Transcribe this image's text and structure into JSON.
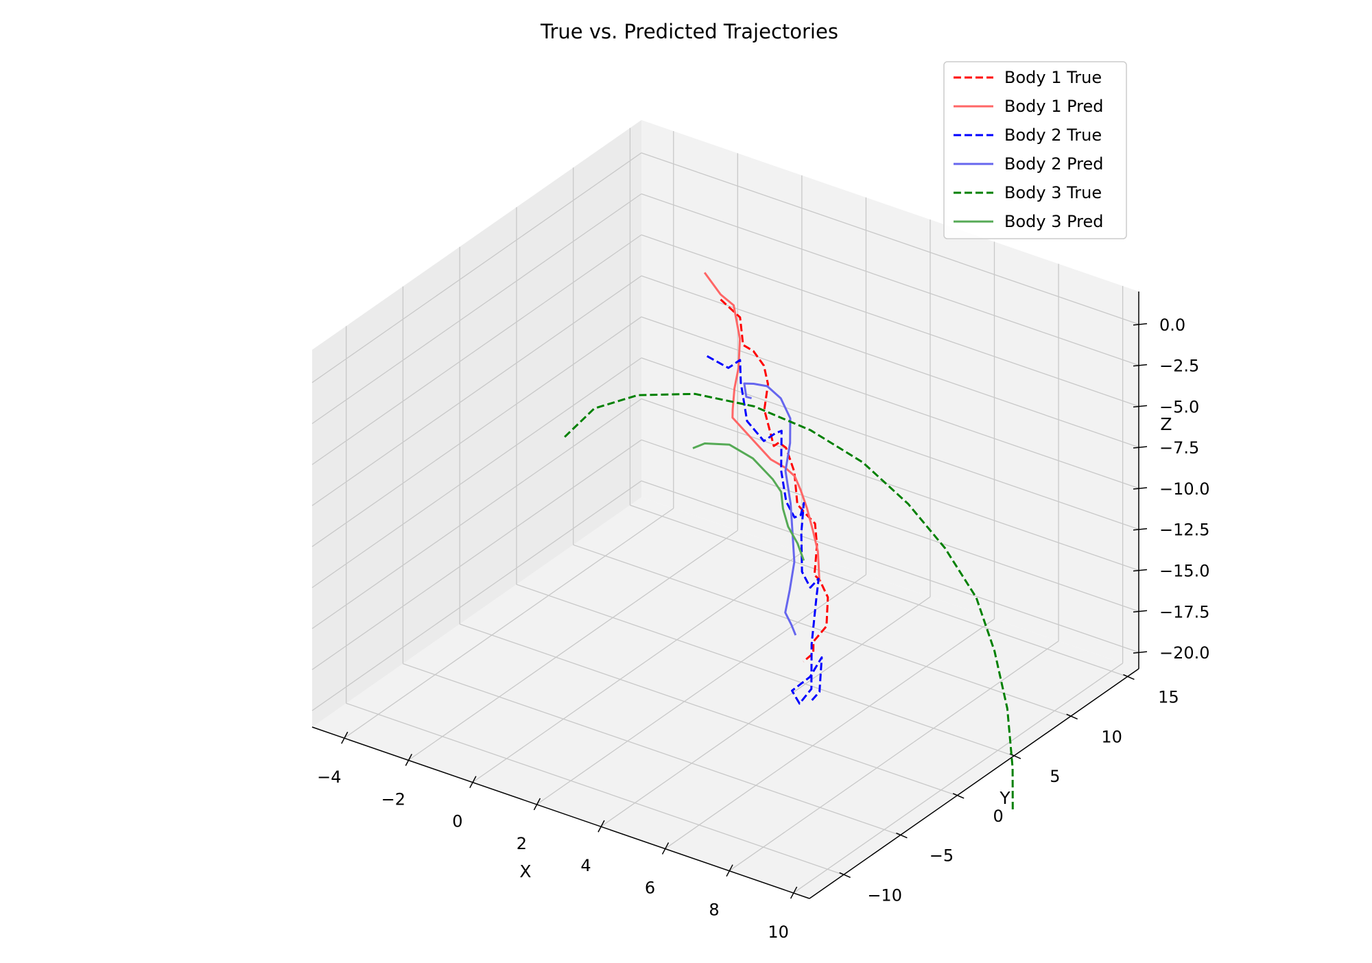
{
  "chart_data": {
    "type": "line3d",
    "title": "True vs. Predicted Trajectories",
    "xlabel": "X",
    "ylabel": "Y",
    "zlabel": "Z",
    "xlim": [
      -5,
      10.5
    ],
    "ylim": [
      -13,
      16
    ],
    "zlim": [
      -21,
      2
    ],
    "xticks": [
      -4,
      -2,
      0,
      2,
      4,
      6,
      8,
      10
    ],
    "yticks": [
      -10,
      -5,
      0,
      5,
      10,
      15
    ],
    "zticks": [
      0.0,
      -2.5,
      -5.0,
      -7.5,
      -10.0,
      -12.5,
      -15.0,
      -17.5,
      -20.0
    ],
    "xtick_labels": [
      "−4",
      "−2",
      "0",
      "2",
      "4",
      "6",
      "8",
      "10"
    ],
    "ytick_labels": [
      "−10",
      "−5",
      "0",
      "5",
      "10",
      "15"
    ],
    "ztick_labels": [
      "0.0",
      "−2.5",
      "−5.0",
      "−7.5",
      "−10.0",
      "−12.5",
      "−15.0",
      "−17.5",
      "−20.0"
    ],
    "grid": true,
    "legend_position": "top-right",
    "colors": {
      "body1": "#ff0000",
      "body2": "#0000ff",
      "body3": "#008000"
    },
    "series": [
      {
        "name": "Body 1 True",
        "color": "#ff0000",
        "style": "dashed",
        "points": [
          [
            0.3,
            8.0,
            -1.5
          ],
          [
            0.8,
            8.3,
            -2.4
          ],
          [
            1.0,
            8.0,
            -3.8
          ],
          [
            1.5,
            7.5,
            -3.6
          ],
          [
            2.0,
            7.0,
            -3.9
          ],
          [
            2.2,
            6.8,
            -4.8
          ],
          [
            2.3,
            6.2,
            -6.0
          ],
          [
            2.7,
            5.9,
            -7.8
          ],
          [
            3.0,
            5.5,
            -7.2
          ],
          [
            3.4,
            5.0,
            -7.0
          ],
          [
            3.8,
            4.6,
            -8.0
          ],
          [
            4.0,
            4.3,
            -9.7
          ],
          [
            4.3,
            4.0,
            -9.8
          ],
          [
            4.8,
            3.6,
            -10.0
          ],
          [
            5.0,
            3.2,
            -11.0
          ],
          [
            5.1,
            2.7,
            -12.5
          ],
          [
            5.4,
            2.3,
            -12.4
          ],
          [
            5.8,
            1.9,
            -13.0
          ],
          [
            5.9,
            1.5,
            -14.5
          ],
          [
            5.6,
            1.2,
            -15.5
          ],
          [
            5.7,
            0.9,
            -16.0
          ],
          [
            5.5,
            0.6,
            -16.5
          ]
        ]
      },
      {
        "name": "Body 1 Pred",
        "color": "#ff6666",
        "style": "solid",
        "points": [
          [
            -0.2,
            8.0,
            -0.2
          ],
          [
            0.3,
            8.0,
            -1.2
          ],
          [
            0.6,
            8.3,
            -1.8
          ],
          [
            0.9,
            8.0,
            -3.5
          ],
          [
            1.0,
            7.6,
            -5.0
          ],
          [
            0.8,
            7.8,
            -6.5
          ],
          [
            0.5,
            8.5,
            -8.3
          ],
          [
            0.6,
            8.2,
            -8.6
          ],
          [
            1.5,
            7.3,
            -8.8
          ],
          [
            2.5,
            6.2,
            -8.9
          ],
          [
            3.2,
            5.5,
            -8.6
          ],
          [
            3.6,
            5.2,
            -8.7
          ],
          [
            4.0,
            4.6,
            -9.0
          ],
          [
            4.4,
            4.0,
            -9.5
          ],
          [
            4.8,
            3.4,
            -10.3
          ],
          [
            5.1,
            3.0,
            -11.2
          ],
          [
            5.3,
            2.5,
            -11.6
          ],
          [
            5.5,
            2.0,
            -12.3
          ]
        ]
      },
      {
        "name": "Body 2 True",
        "color": "#0000ff",
        "style": "dashed",
        "points": [
          [
            -0.3,
            8.5,
            -5.6
          ],
          [
            0.4,
            8.4,
            -5.8
          ],
          [
            0.8,
            8.3,
            -5.0
          ],
          [
            1.0,
            7.8,
            -6.0
          ],
          [
            1.3,
            7.5,
            -8.0
          ],
          [
            2.0,
            7.0,
            -8.5
          ],
          [
            2.5,
            6.6,
            -7.5
          ],
          [
            2.8,
            6.3,
            -7.0
          ],
          [
            3.0,
            5.7,
            -9.0
          ],
          [
            3.3,
            5.3,
            -10.5
          ],
          [
            3.7,
            4.9,
            -11.0
          ],
          [
            4.0,
            4.6,
            -10.5
          ],
          [
            4.2,
            4.3,
            -9.5
          ],
          [
            4.3,
            3.8,
            -11.0
          ],
          [
            4.5,
            3.3,
            -13.0
          ],
          [
            4.9,
            2.9,
            -13.5
          ],
          [
            5.3,
            2.5,
            -12.5
          ],
          [
            5.4,
            2.0,
            -13.5
          ],
          [
            5.4,
            1.6,
            -16.0
          ],
          [
            5.5,
            1.3,
            -18.5
          ],
          [
            5.2,
            1.1,
            -19.5
          ],
          [
            5.0,
            1.0,
            -18.8
          ],
          [
            5.6,
            0.9,
            -17.5
          ],
          [
            6.0,
            0.8,
            -16.0
          ],
          [
            6.0,
            0.6,
            -18.0
          ],
          [
            5.8,
            0.5,
            -18.6
          ]
        ]
      },
      {
        "name": "Body 2 Pred",
        "color": "#6666ee",
        "style": "solid",
        "points": [
          [
            1.3,
            7.9,
            -6.8
          ],
          [
            1.1,
            8.0,
            -6.9
          ],
          [
            1.0,
            8.1,
            -6.2
          ],
          [
            1.4,
            7.8,
            -5.8
          ],
          [
            2.0,
            7.3,
            -5.3
          ],
          [
            2.6,
            6.8,
            -5.4
          ],
          [
            3.0,
            6.5,
            -6.2
          ],
          [
            3.1,
            6.2,
            -7.5
          ],
          [
            3.1,
            5.8,
            -9.0
          ],
          [
            3.4,
            5.4,
            -10.6
          ],
          [
            3.6,
            5.0,
            -12.0
          ],
          [
            3.8,
            4.6,
            -13.5
          ],
          [
            3.8,
            4.2,
            -15.0
          ],
          [
            3.8,
            3.8,
            -16.2
          ],
          [
            4.1,
            3.5,
            -16.6
          ],
          [
            4.3,
            3.3,
            -17.0
          ]
        ]
      },
      {
        "name": "Body 3 True",
        "color": "#008000",
        "style": "dashed",
        "points": [
          [
            -3.5,
            5.0,
            -11.0
          ],
          [
            -3.0,
            6.2,
            -9.5
          ],
          [
            -2.0,
            7.2,
            -8.5
          ],
          [
            -0.5,
            8.0,
            -7.8
          ],
          [
            1.2,
            8.4,
            -7.6
          ],
          [
            3.0,
            8.3,
            -7.8
          ],
          [
            4.8,
            7.8,
            -8.3
          ],
          [
            6.5,
            7.0,
            -9.3
          ],
          [
            8.0,
            6.0,
            -10.5
          ],
          [
            9.4,
            4.8,
            -12.0
          ],
          [
            10.5,
            3.3,
            -13.8
          ],
          [
            11.5,
            1.6,
            -15.8
          ],
          [
            12.3,
            -0.2,
            -18.0
          ],
          [
            12.8,
            -1.6,
            -19.6
          ]
        ]
      },
      {
        "name": "Body 3 Pred",
        "color": "#55aa55",
        "style": "solid",
        "points": [
          [
            0.0,
            6.4,
            -10.0
          ],
          [
            0.3,
            6.6,
            -9.6
          ],
          [
            1.0,
            6.8,
            -9.3
          ],
          [
            1.8,
            6.6,
            -9.5
          ],
          [
            2.6,
            6.1,
            -10.0
          ],
          [
            3.0,
            5.7,
            -10.3
          ],
          [
            3.2,
            5.3,
            -11.0
          ],
          [
            3.5,
            4.9,
            -11.7
          ],
          [
            3.9,
            4.6,
            -12.3
          ],
          [
            4.2,
            4.3,
            -13.0
          ]
        ]
      }
    ]
  }
}
